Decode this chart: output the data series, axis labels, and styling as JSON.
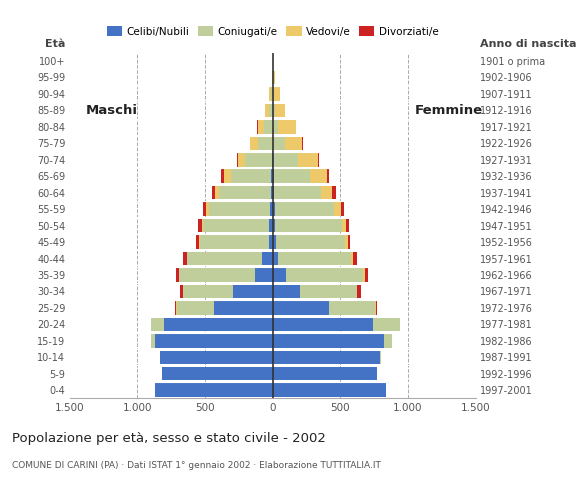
{
  "age_groups": [
    "0-4",
    "5-9",
    "10-14",
    "15-19",
    "20-24",
    "25-29",
    "30-34",
    "35-39",
    "40-44",
    "45-49",
    "50-54",
    "55-59",
    "60-64",
    "65-69",
    "70-74",
    "75-79",
    "80-84",
    "85-89",
    "90-94",
    "95-99",
    "100+"
  ],
  "birth_years": [
    "1997-2001",
    "1992-1996",
    "1987-1991",
    "1982-1986",
    "1977-1981",
    "1972-1976",
    "1967-1971",
    "1962-1966",
    "1957-1961",
    "1952-1956",
    "1947-1951",
    "1942-1946",
    "1937-1941",
    "1932-1936",
    "1927-1931",
    "1922-1926",
    "1917-1921",
    "1912-1916",
    "1907-1911",
    "1902-1906",
    "1901 o prima"
  ],
  "males": {
    "celibe": [
      870,
      820,
      830,
      870,
      800,
      430,
      290,
      130,
      80,
      30,
      25,
      20,
      15,
      10,
      5,
      0,
      0,
      0,
      0,
      0,
      0
    ],
    "coniugato": [
      0,
      0,
      5,
      30,
      100,
      280,
      370,
      560,
      550,
      510,
      490,
      450,
      380,
      300,
      200,
      110,
      60,
      30,
      10,
      0,
      0
    ],
    "vedovo": [
      0,
      0,
      0,
      0,
      0,
      5,
      5,
      5,
      5,
      5,
      10,
      20,
      30,
      50,
      50,
      55,
      50,
      25,
      15,
      5,
      0
    ],
    "divorziato": [
      0,
      0,
      0,
      0,
      0,
      5,
      20,
      20,
      25,
      20,
      25,
      25,
      25,
      20,
      5,
      5,
      5,
      0,
      0,
      0,
      0
    ]
  },
  "females": {
    "nubile": [
      840,
      770,
      790,
      820,
      740,
      420,
      200,
      100,
      40,
      25,
      20,
      15,
      10,
      10,
      5,
      0,
      0,
      0,
      0,
      0,
      0
    ],
    "coniugata": [
      0,
      0,
      10,
      60,
      200,
      340,
      420,
      570,
      540,
      510,
      490,
      440,
      350,
      270,
      180,
      90,
      40,
      15,
      5,
      0,
      0
    ],
    "vedova": [
      0,
      0,
      0,
      0,
      0,
      5,
      5,
      10,
      15,
      20,
      30,
      50,
      80,
      120,
      150,
      130,
      130,
      80,
      50,
      15,
      5
    ],
    "divorziata": [
      0,
      0,
      0,
      0,
      0,
      10,
      25,
      25,
      25,
      20,
      25,
      25,
      25,
      20,
      10,
      5,
      5,
      0,
      0,
      0,
      0
    ]
  },
  "colors": {
    "celibe": "#4472C4",
    "coniugato": "#BFCE9A",
    "vedovo": "#EEC96A",
    "divorziato": "#CC2222"
  },
  "xlim": 1500,
  "title": "Popolazione per età, sesso e stato civile - 2002",
  "subtitle": "COMUNE DI CARINI (PA) · Dati ISTAT 1° gennaio 2002 · Elaborazione TUTTITALIA.IT",
  "ylabel_left": "Età",
  "ylabel_right": "Anno di nascita",
  "label_maschi": "Maschi",
  "label_femmine": "Femmine",
  "legend_labels": [
    "Celibi/Nubili",
    "Coniugati/e",
    "Vedovi/e",
    "Divorziati/e"
  ],
  "xtick_labels": [
    "1.500",
    "1.000",
    "500",
    "0",
    "500",
    "1.000",
    "1.500"
  ],
  "xtick_values": [
    -1500,
    -1000,
    -500,
    0,
    500,
    1000,
    1500
  ],
  "background_color": "#FFFFFF",
  "bar_height": 0.82
}
